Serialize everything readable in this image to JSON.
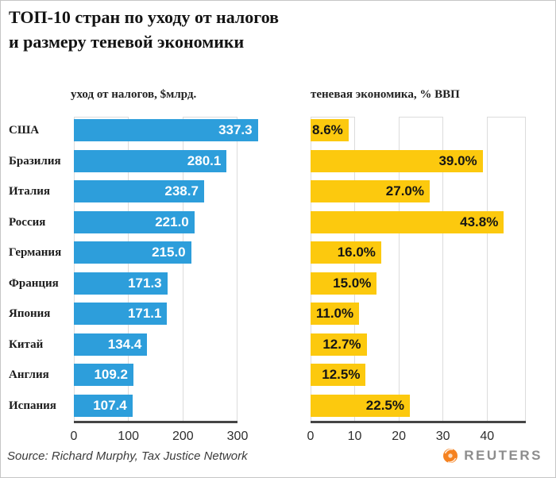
{
  "title": {
    "line1": "ТОП-10 стран по уходу от налогов",
    "line2": "и размеру теневой экономики"
  },
  "categories": [
    "США",
    "Бразилия",
    "Италия",
    "Россия",
    "Германия",
    "Франция",
    "Япония",
    "Китай",
    "Англия",
    "Испания"
  ],
  "chart_data": [
    {
      "type": "bar",
      "orientation": "horizontal",
      "title": "уход от налогов, $млрд.",
      "categories": [
        "США",
        "Бразилия",
        "Италия",
        "Россия",
        "Германия",
        "Франция",
        "Япония",
        "Китай",
        "Англия",
        "Испания"
      ],
      "values": [
        337.3,
        280.1,
        238.7,
        221.0,
        215.0,
        171.3,
        171.1,
        134.4,
        109.2,
        107.4
      ],
      "value_labels": [
        "337.3",
        "280.1",
        "238.7",
        "221.0",
        "215.0",
        "171.3",
        "171.1",
        "134.4",
        "109.2",
        "107.4"
      ],
      "xticks": [
        0,
        100,
        200,
        300
      ],
      "xlim": [
        0,
        300
      ],
      "bar_color": "#2D9EDB",
      "label_color": "#ffffff",
      "grid": true,
      "legend": "none"
    },
    {
      "type": "bar",
      "orientation": "horizontal",
      "title": "теневая экономика, % ВВП",
      "categories": [
        "США",
        "Бразилия",
        "Италия",
        "Россия",
        "Германия",
        "Франция",
        "Япония",
        "Китай",
        "Англия",
        "Испания"
      ],
      "values": [
        8.6,
        39.0,
        27.0,
        43.8,
        16.0,
        15.0,
        11.0,
        12.7,
        12.5,
        22.5
      ],
      "value_labels": [
        "8.6%",
        "39.0%",
        "27.0%",
        "43.8%",
        "16.0%",
        "15.0%",
        "11.0%",
        "12.7%",
        "12.5%",
        "22.5%"
      ],
      "xticks": [
        0,
        10,
        20,
        30,
        40
      ],
      "xlim": [
        0,
        48.8
      ],
      "bar_color": "#FCC90E",
      "label_color": "#151515",
      "grid": true,
      "legend": "none"
    }
  ],
  "footer": {
    "source": "Source: Richard Murphy, Tax Justice Network",
    "brand": "REUTERS"
  },
  "colors": {
    "bar_blue": "#2D9EDB",
    "bar_yellow": "#FCC90E",
    "axis_line": "#454545",
    "gridline": "#dcdcdc",
    "reuters_orange": "#f58220",
    "reuters_gray": "#8d8d8d"
  }
}
